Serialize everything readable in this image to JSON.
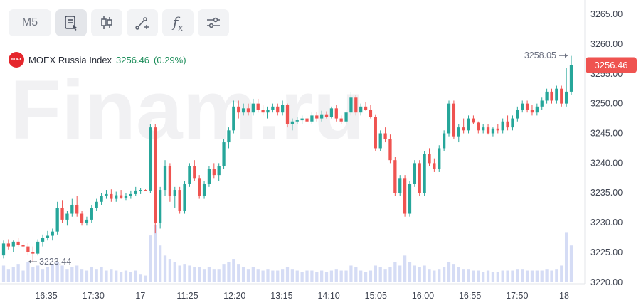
{
  "toolbar": {
    "interval": "M5",
    "tools": [
      {
        "icon": "order-book-icon"
      },
      {
        "icon": "candles-icon"
      },
      {
        "icon": "trend-line-icon"
      },
      {
        "icon": "indicators-fx-icon",
        "text": "f",
        "sub": "x"
      },
      {
        "icon": "settings-sliders-icon"
      }
    ]
  },
  "legend": {
    "logo_text": "MOEX",
    "name": "MOEX Russia Index",
    "value": "3256.46",
    "change": "(0.29%)"
  },
  "watermark": "Finam.ru",
  "colors": {
    "up": "#26a69a",
    "down": "#ef5350",
    "volume": "#d5dcf5",
    "price_line": "#ef5350",
    "badge": "#ef5350"
  },
  "chart_data": {
    "type": "candlestick",
    "yticks": [
      "3265.00",
      "3260.00",
      "3255.00",
      "3250.00",
      "3245.00",
      "3240.00",
      "3235.00",
      "3230.00",
      "3225.00",
      "3220.00"
    ],
    "ylim": [
      3219,
      3267
    ],
    "xticks": [
      "16:35",
      "17:30",
      "17",
      "11:25",
      "12:20",
      "13:15",
      "14:10",
      "15:05",
      "16:00",
      "16:55",
      "17:50",
      "18"
    ],
    "current_price": "3256.46",
    "high_label": "3258.05",
    "low_label": "3223.44",
    "candles": [
      [
        3224.5,
        3227.0,
        3224.0,
        3226.5,
        10
      ],
      [
        3226.5,
        3227.2,
        3225.5,
        3226.0,
        8
      ],
      [
        3226.0,
        3227.0,
        3225.0,
        3226.8,
        9
      ],
      [
        3226.8,
        3227.5,
        3226.0,
        3226.2,
        11
      ],
      [
        3226.2,
        3227.0,
        3225.0,
        3226.0,
        7
      ],
      [
        3226.0,
        3226.6,
        3224.5,
        3225.0,
        12
      ],
      [
        3225.0,
        3226.0,
        3223.4,
        3224.8,
        9
      ],
      [
        3224.8,
        3227.2,
        3224.5,
        3226.8,
        10
      ],
      [
        3226.8,
        3228.0,
        3226.0,
        3227.5,
        8
      ],
      [
        3227.5,
        3228.6,
        3227.0,
        3227.8,
        9
      ],
      [
        3227.8,
        3229.0,
        3227.0,
        3228.5,
        11
      ],
      [
        3228.5,
        3233.5,
        3228.0,
        3232.5,
        12
      ],
      [
        3232.5,
        3233.8,
        3230.0,
        3230.5,
        10
      ],
      [
        3230.5,
        3232.0,
        3229.5,
        3231.5,
        8
      ],
      [
        3231.5,
        3234.0,
        3231.0,
        3233.0,
        9
      ],
      [
        3233.0,
        3234.5,
        3231.0,
        3231.5,
        10
      ],
      [
        3231.5,
        3232.0,
        3229.5,
        3230.0,
        8
      ],
      [
        3230.0,
        3231.0,
        3229.5,
        3230.5,
        7
      ],
      [
        3230.5,
        3233.0,
        3230.0,
        3232.5,
        9
      ],
      [
        3232.5,
        3234.0,
        3232.0,
        3233.5,
        8
      ],
      [
        3233.5,
        3235.0,
        3233.0,
        3234.5,
        9
      ],
      [
        3234.5,
        3235.5,
        3234.0,
        3234.8,
        7
      ],
      [
        3234.8,
        3235.6,
        3233.5,
        3234.0,
        8
      ],
      [
        3234.0,
        3235.2,
        3233.5,
        3234.6,
        7
      ],
      [
        3234.6,
        3235.5,
        3234.0,
        3234.2,
        6
      ],
      [
        3234.2,
        3235.0,
        3233.8,
        3234.5,
        7
      ],
      [
        3234.5,
        3235.4,
        3234.0,
        3234.8,
        6
      ],
      [
        3234.8,
        3236.0,
        3234.5,
        3235.4,
        7
      ],
      [
        3235.4,
        3235.8,
        3234.8,
        3235.5,
        5
      ],
      [
        3235.5,
        3235.6,
        3235.3,
        3235.4,
        4
      ],
      [
        3235.4,
        3246.5,
        3235.0,
        3246.0,
        28
      ],
      [
        3246.0,
        3246.5,
        3228.2,
        3230.0,
        34
      ],
      [
        3230.0,
        3236.0,
        3229.0,
        3235.5,
        22
      ],
      [
        3235.5,
        3240.5,
        3234.5,
        3239.5,
        16
      ],
      [
        3239.5,
        3240.0,
        3233.5,
        3234.5,
        14
      ],
      [
        3234.5,
        3236.0,
        3232.5,
        3235.5,
        12
      ],
      [
        3235.5,
        3236.0,
        3231.5,
        3232.0,
        10
      ],
      [
        3232.0,
        3237.0,
        3231.5,
        3236.5,
        11
      ],
      [
        3236.5,
        3240.0,
        3236.0,
        3239.5,
        10
      ],
      [
        3239.5,
        3240.5,
        3237.0,
        3237.5,
        9
      ],
      [
        3237.5,
        3238.0,
        3234.0,
        3234.5,
        9
      ],
      [
        3234.5,
        3237.0,
        3234.0,
        3236.5,
        8
      ],
      [
        3236.5,
        3239.5,
        3236.0,
        3239.0,
        9
      ],
      [
        3239.0,
        3240.0,
        3237.5,
        3238.0,
        8
      ],
      [
        3238.0,
        3240.0,
        3237.0,
        3239.5,
        8
      ],
      [
        3239.5,
        3244.0,
        3239.0,
        3243.5,
        11
      ],
      [
        3243.5,
        3246.0,
        3242.5,
        3245.5,
        12
      ],
      [
        3245.5,
        3250.5,
        3245.0,
        3249.5,
        14
      ],
      [
        3249.5,
        3250.5,
        3247.5,
        3248.5,
        11
      ],
      [
        3248.5,
        3250.0,
        3248.0,
        3249.2,
        9
      ],
      [
        3249.2,
        3250.0,
        3248.0,
        3248.5,
        8
      ],
      [
        3248.5,
        3250.8,
        3248.0,
        3250.0,
        9
      ],
      [
        3250.0,
        3250.8,
        3248.5,
        3249.0,
        8
      ],
      [
        3249.0,
        3249.8,
        3248.0,
        3248.5,
        7
      ],
      [
        3248.5,
        3249.5,
        3247.5,
        3249.0,
        8
      ],
      [
        3249.0,
        3250.0,
        3248.5,
        3249.5,
        7
      ],
      [
        3249.5,
        3250.0,
        3248.0,
        3248.5,
        7
      ],
      [
        3248.5,
        3250.5,
        3248.0,
        3249.8,
        8
      ],
      [
        3249.8,
        3250.0,
        3246.0,
        3246.5,
        9
      ],
      [
        3246.5,
        3247.5,
        3245.5,
        3247.0,
        8
      ],
      [
        3247.0,
        3247.8,
        3246.5,
        3247.2,
        7
      ],
      [
        3247.2,
        3248.0,
        3246.5,
        3247.5,
        6
      ],
      [
        3247.5,
        3248.0,
        3246.8,
        3247.0,
        7
      ],
      [
        3247.0,
        3248.5,
        3246.5,
        3248.0,
        7
      ],
      [
        3248.0,
        3248.6,
        3247.0,
        3247.5,
        6
      ],
      [
        3247.5,
        3248.8,
        3247.0,
        3248.2,
        7
      ],
      [
        3248.2,
        3248.7,
        3247.5,
        3247.8,
        6
      ],
      [
        3247.8,
        3249.5,
        3247.5,
        3249.2,
        7
      ],
      [
        3249.2,
        3249.8,
        3247.0,
        3247.5,
        8
      ],
      [
        3247.5,
        3248.0,
        3246.5,
        3247.0,
        7
      ],
      [
        3247.0,
        3249.0,
        3246.5,
        3248.5,
        7
      ],
      [
        3248.5,
        3252.0,
        3248.0,
        3251.0,
        10
      ],
      [
        3251.0,
        3251.5,
        3248.0,
        3248.5,
        9
      ],
      [
        3248.5,
        3250.0,
        3248.0,
        3249.5,
        7
      ],
      [
        3249.5,
        3250.2,
        3248.8,
        3249.0,
        6
      ],
      [
        3249.0,
        3249.8,
        3247.5,
        3247.8,
        7
      ],
      [
        3247.8,
        3248.2,
        3242.0,
        3242.5,
        10
      ],
      [
        3242.5,
        3245.5,
        3242.0,
        3245.0,
        9
      ],
      [
        3245.0,
        3246.0,
        3243.5,
        3244.0,
        8
      ],
      [
        3244.0,
        3244.8,
        3240.0,
        3240.5,
        9
      ],
      [
        3240.5,
        3241.0,
        3234.5,
        3235.0,
        12
      ],
      [
        3235.0,
        3238.0,
        3234.5,
        3237.5,
        10
      ],
      [
        3237.5,
        3238.0,
        3231.0,
        3231.5,
        16
      ],
      [
        3231.5,
        3237.0,
        3231.0,
        3236.5,
        12
      ],
      [
        3236.5,
        3240.5,
        3236.0,
        3240.0,
        10
      ],
      [
        3240.0,
        3240.5,
        3234.5,
        3235.0,
        9
      ],
      [
        3235.0,
        3242.0,
        3234.5,
        3241.5,
        10
      ],
      [
        3241.5,
        3242.5,
        3239.5,
        3240.0,
        8
      ],
      [
        3240.0,
        3240.8,
        3238.5,
        3239.0,
        7
      ],
      [
        3239.0,
        3243.0,
        3238.5,
        3242.5,
        8
      ],
      [
        3242.5,
        3245.5,
        3242.0,
        3245.0,
        9
      ],
      [
        3245.0,
        3250.5,
        3244.5,
        3250.0,
        12
      ],
      [
        3250.0,
        3250.5,
        3244.0,
        3244.5,
        11
      ],
      [
        3244.5,
        3246.5,
        3243.5,
        3246.0,
        9
      ],
      [
        3246.0,
        3247.5,
        3245.0,
        3245.5,
        8
      ],
      [
        3245.5,
        3248.0,
        3245.0,
        3247.5,
        8
      ],
      [
        3247.5,
        3248.0,
        3246.5,
        3246.8,
        7
      ],
      [
        3246.8,
        3247.0,
        3245.0,
        3245.5,
        7
      ],
      [
        3245.5,
        3246.5,
        3245.0,
        3246.0,
        6
      ],
      [
        3246.0,
        3246.5,
        3244.8,
        3245.0,
        7
      ],
      [
        3245.0,
        3246.0,
        3244.5,
        3245.8,
        6
      ],
      [
        3245.8,
        3246.5,
        3245.0,
        3245.5,
        6
      ],
      [
        3245.5,
        3247.5,
        3245.0,
        3247.0,
        7
      ],
      [
        3247.0,
        3248.0,
        3245.5,
        3246.0,
        7
      ],
      [
        3246.0,
        3248.0,
        3245.5,
        3247.5,
        7
      ],
      [
        3247.5,
        3249.5,
        3247.0,
        3249.0,
        8
      ],
      [
        3249.0,
        3250.5,
        3248.5,
        3250.0,
        8
      ],
      [
        3250.0,
        3250.5,
        3248.5,
        3249.0,
        7
      ],
      [
        3249.0,
        3249.8,
        3248.0,
        3248.5,
        7
      ],
      [
        3248.5,
        3250.0,
        3248.0,
        3249.5,
        7
      ],
      [
        3249.5,
        3251.0,
        3249.0,
        3250.5,
        7
      ],
      [
        3250.5,
        3252.5,
        3250.0,
        3252.0,
        8
      ],
      [
        3252.0,
        3252.5,
        3250.0,
        3250.5,
        7
      ],
      [
        3250.5,
        3253.0,
        3250.0,
        3252.5,
        8
      ],
      [
        3252.5,
        3253.0,
        3249.5,
        3250.0,
        10
      ],
      [
        3250.0,
        3256.0,
        3249.5,
        3252.0,
        30
      ],
      [
        3252.0,
        3258.0,
        3251.5,
        3256.5,
        22
      ]
    ]
  }
}
